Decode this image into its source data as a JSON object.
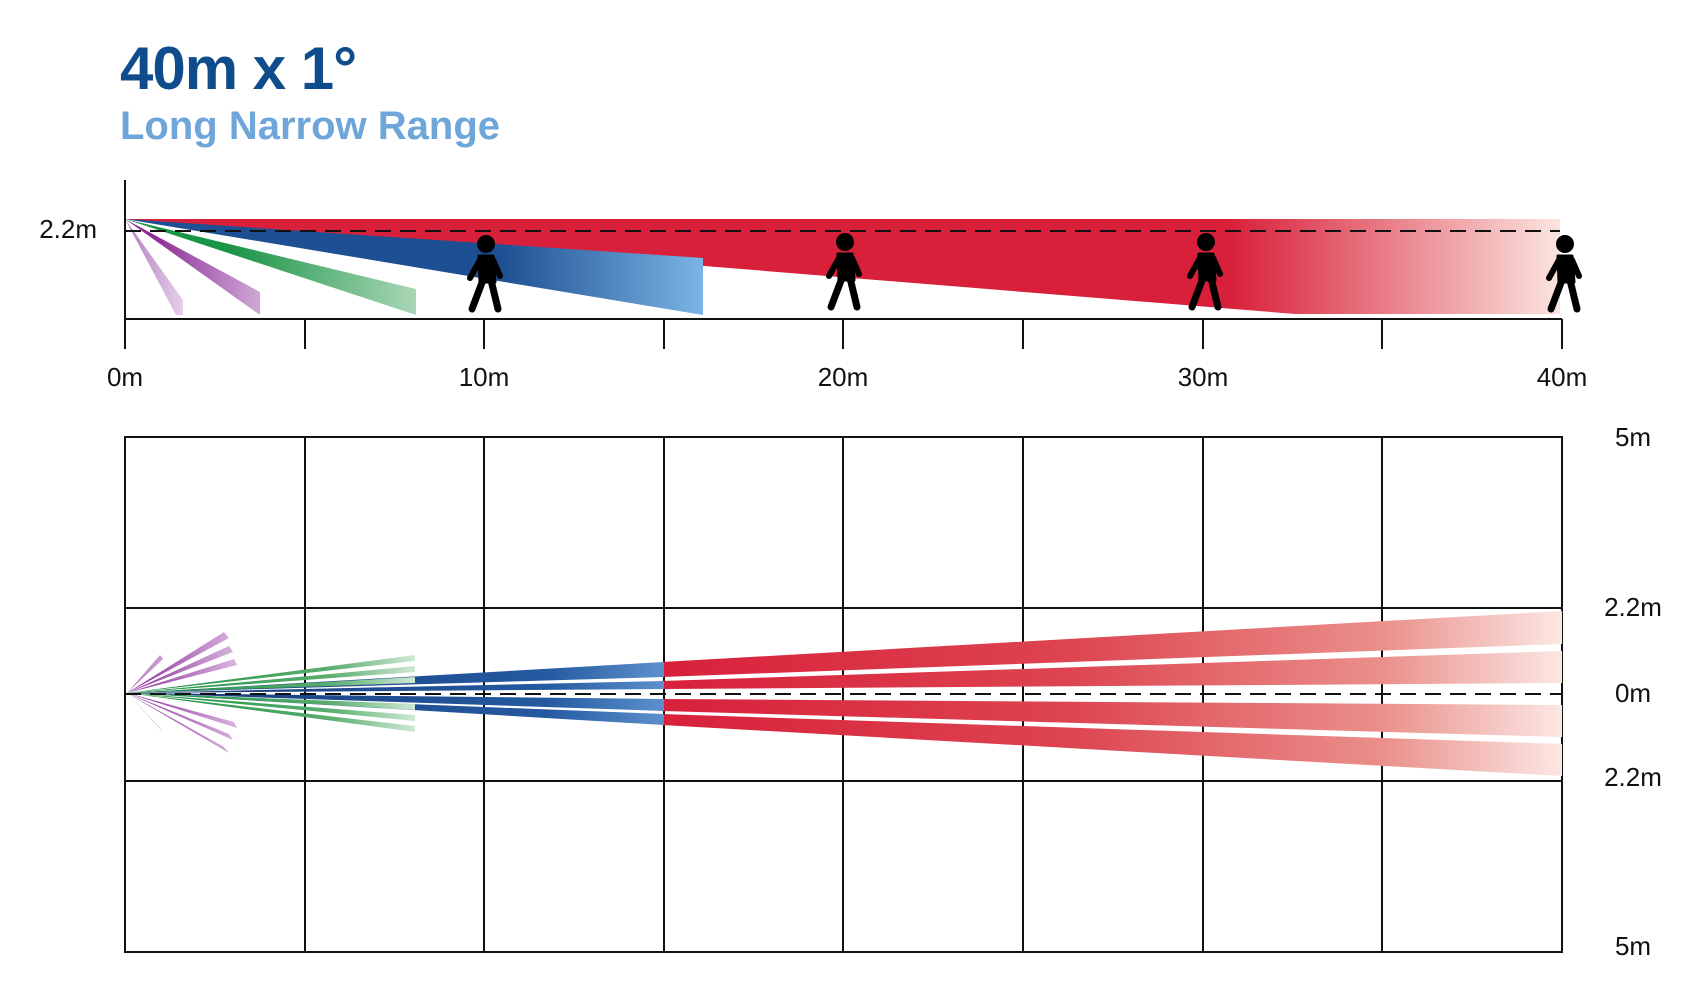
{
  "header": {
    "title": "40m x 1°",
    "subtitle": "Long Narrow Range"
  },
  "side_view": {
    "mount_height_label": "2.2m",
    "distance_labels": [
      "0m",
      "10m",
      "20m",
      "30m",
      "40m"
    ],
    "person_count": 4
  },
  "top_view": {
    "width_labels": {
      "top_outer": "5m",
      "top_inner": "2.2m",
      "center": "0m",
      "bottom_inner": "2.2m",
      "bottom_outer": "5m"
    }
  },
  "colors": {
    "title": "#0e4c8c",
    "subtitle": "#6ea6da",
    "red_zone": "#d8203a",
    "blue_zone": "#1d4f92",
    "green_zone": "#1a9446",
    "purple_zone": "#8a2a96"
  }
}
